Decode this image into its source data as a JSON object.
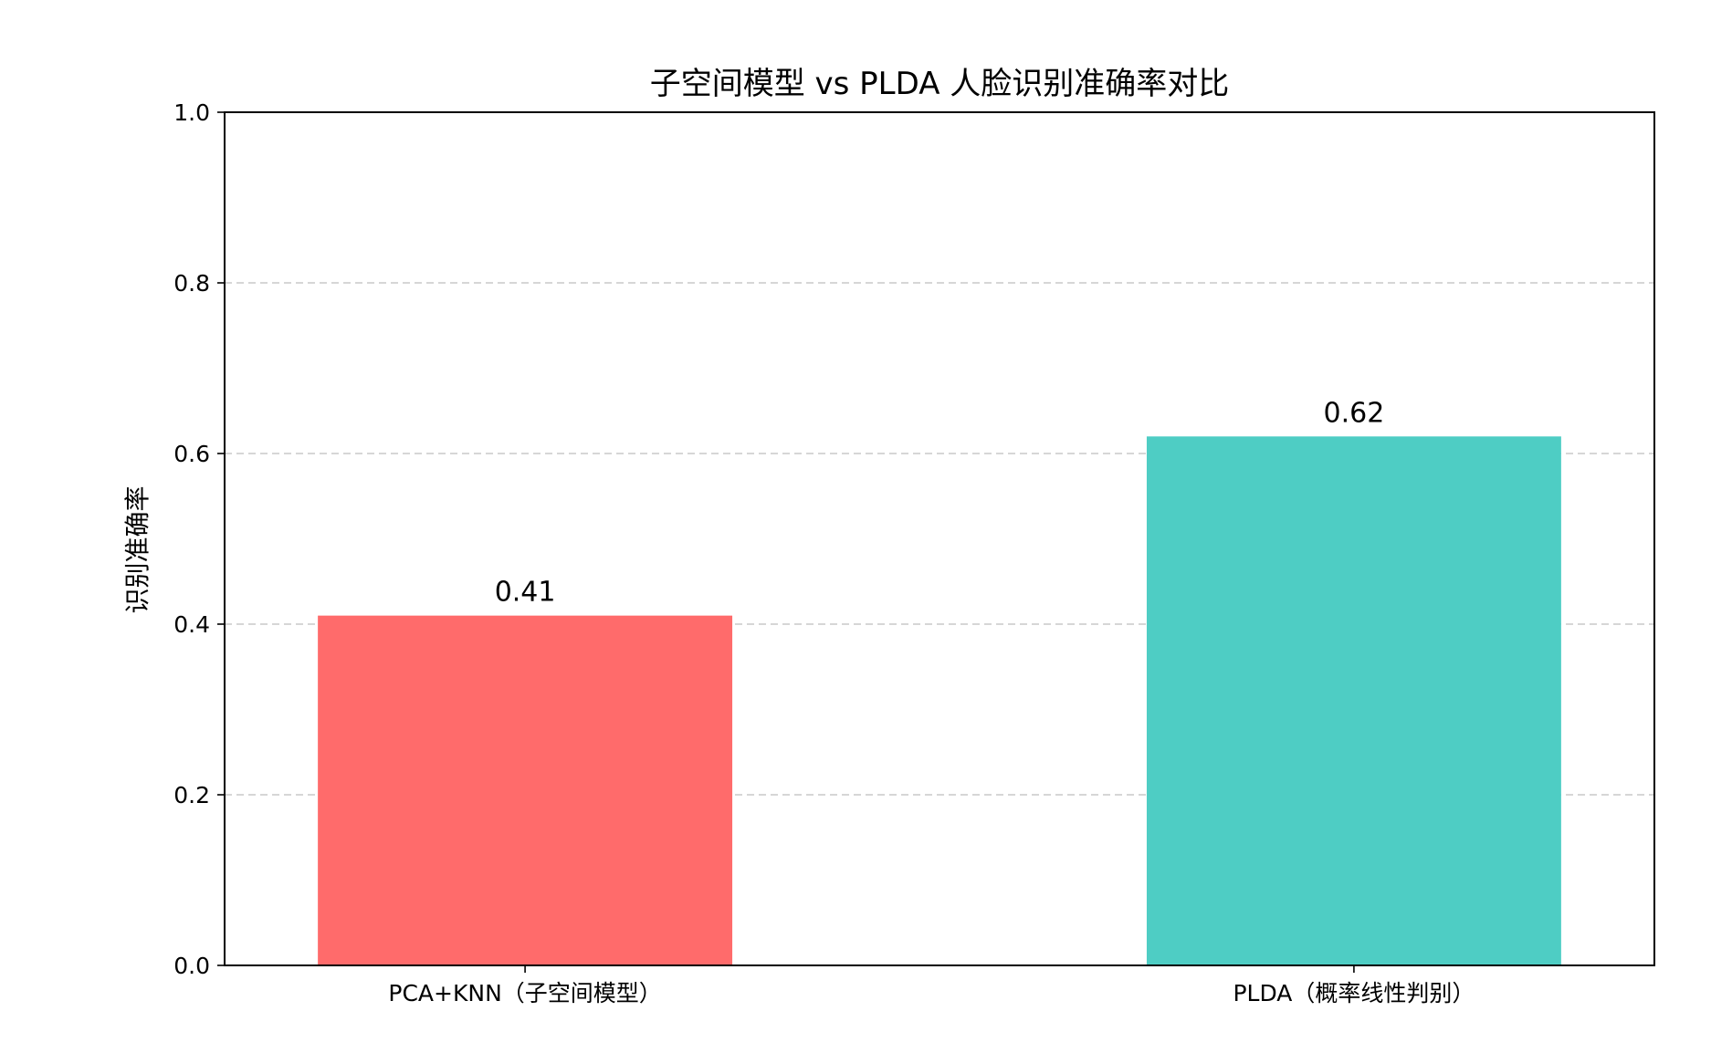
{
  "chart_data": {
    "type": "bar",
    "title": "子空间模型 vs PLDA 人脸识别准确率对比",
    "xlabel": "",
    "ylabel": "识别准确率",
    "categories": [
      "PCA+KNN（子空间模型）",
      "PLDA（概率线性判别）"
    ],
    "values": [
      0.41,
      0.62
    ],
    "value_labels": [
      "0.41",
      "0.62"
    ],
    "bar_colors": [
      "#ff6b6b",
      "#4ecdc4"
    ],
    "ylim": [
      0,
      1.0
    ],
    "yticks": [
      0.0,
      0.2,
      0.4,
      0.6,
      0.8,
      1.0
    ],
    "ytick_labels": [
      "0.0",
      "0.2",
      "0.4",
      "0.6",
      "0.8",
      "1.0"
    ],
    "grid": "y-dashed",
    "legend": "none"
  }
}
